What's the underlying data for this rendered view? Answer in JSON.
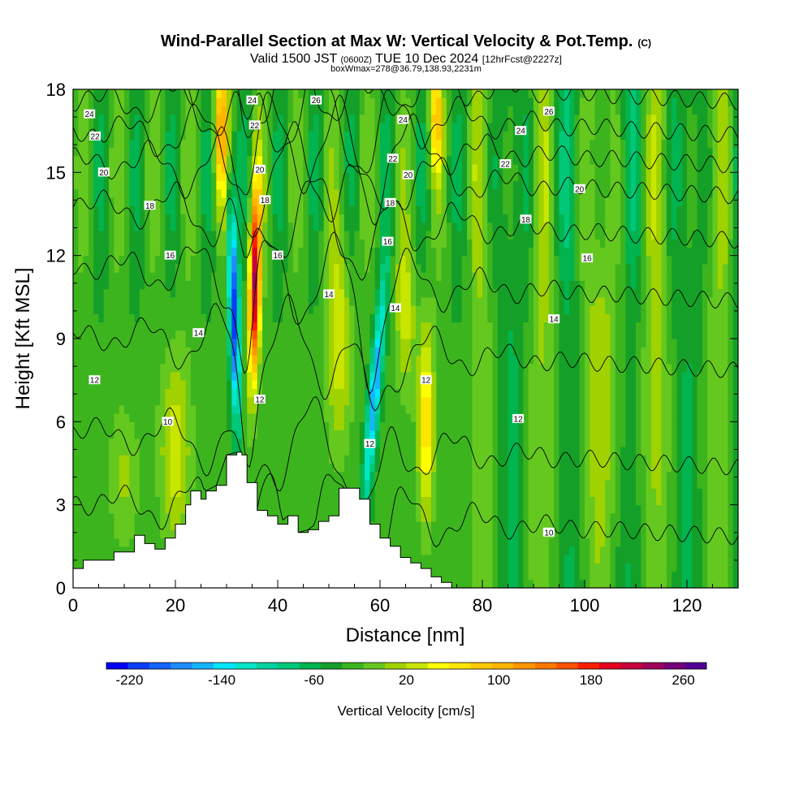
{
  "chart_data": {
    "type": "heatmap",
    "title": "Wind-Parallel Section at Max W: Vertical Velocity & Pot.Temp.",
    "title_mark": "(C)",
    "subtitle_parts": [
      "Valid 1500 JST",
      "(0600Z)",
      "TUE 10 Dec 2024",
      "[12hrFcst@2227z]"
    ],
    "subtitle2": "boxWmax=278@36.79,138.93,2231m",
    "xlabel": "Distance [nm]",
    "ylabel": "Height [Kft MSL]",
    "xlim": [
      0,
      130
    ],
    "ylim": [
      0,
      18
    ],
    "x_ticks": [
      "0",
      "20",
      "40",
      "60",
      "80",
      "100",
      "120"
    ],
    "y_ticks": [
      "0",
      "3",
      "6",
      "9",
      "12",
      "15",
      "18"
    ],
    "colorbar": {
      "label": "Vertical Velocity [cm/s]",
      "tick_labels": [
        "-220",
        "-140",
        "-60",
        "20",
        "100",
        "180",
        "260"
      ],
      "min": -240,
      "max": 280,
      "step": 20,
      "colors": [
        "#0000ff",
        "#0a3cff",
        "#1464ff",
        "#1e8cff",
        "#14b4ff",
        "#00e6ff",
        "#00e6c8",
        "#00d2a0",
        "#00c878",
        "#00b450",
        "#14a028",
        "#3cb41e",
        "#64c81e",
        "#a0d200",
        "#c8e600",
        "#ffff00",
        "#ffe600",
        "#ffc800",
        "#ffb400",
        "#ff9600",
        "#ff7800",
        "#ff5000",
        "#ff1e00",
        "#e6001e",
        "#c8003c",
        "#a0005a",
        "#780078",
        "#500096"
      ]
    },
    "theta_contours": [
      10,
      12,
      14,
      16,
      18,
      20,
      22,
      24,
      26
    ],
    "terrain_height_kft": [
      [
        0,
        0.7
      ],
      [
        2,
        1.0
      ],
      [
        8,
        1.3
      ],
      [
        12,
        1.9
      ],
      [
        14,
        1.6
      ],
      [
        16,
        1.4
      ],
      [
        18,
        1.8
      ],
      [
        20,
        2.3
      ],
      [
        22,
        3.0
      ],
      [
        23,
        3.5
      ],
      [
        25,
        3.2
      ],
      [
        26,
        3.5
      ],
      [
        28,
        3.7
      ],
      [
        30,
        4.8
      ],
      [
        32,
        4.9
      ],
      [
        33,
        4.8
      ],
      [
        34,
        3.8
      ],
      [
        36,
        2.8
      ],
      [
        38,
        2.6
      ],
      [
        40,
        2.3
      ],
      [
        42,
        2.6
      ],
      [
        44,
        2.0
      ],
      [
        46,
        2.1
      ],
      [
        48,
        2.4
      ],
      [
        50,
        2.6
      ],
      [
        52,
        3.6
      ],
      [
        54,
        3.6
      ],
      [
        56,
        3.2
      ],
      [
        58,
        2.3
      ],
      [
        60,
        1.8
      ],
      [
        62,
        1.5
      ],
      [
        64,
        1.1
      ],
      [
        66,
        0.9
      ],
      [
        68,
        0.7
      ],
      [
        70,
        0.4
      ],
      [
        72,
        0.2
      ],
      [
        74,
        0.0
      ],
      [
        130,
        0.0
      ]
    ],
    "contour_labels": [
      {
        "text": "24",
        "x": 3.2,
        "y": 17.1
      },
      {
        "text": "22",
        "x": 4.3,
        "y": 16.3
      },
      {
        "text": "20",
        "x": 6.0,
        "y": 15.0
      },
      {
        "text": "18",
        "x": 15.0,
        "y": 13.8
      },
      {
        "text": "16",
        "x": 19.0,
        "y": 12.0
      },
      {
        "text": "14",
        "x": 24.5,
        "y": 9.2
      },
      {
        "text": "12",
        "x": 4.2,
        "y": 7.5
      },
      {
        "text": "10",
        "x": 18.5,
        "y": 6.0
      },
      {
        "text": "24",
        "x": 35.0,
        "y": 17.6
      },
      {
        "text": "22",
        "x": 35.5,
        "y": 16.7
      },
      {
        "text": "20",
        "x": 36.5,
        "y": 15.1
      },
      {
        "text": "18",
        "x": 37.5,
        "y": 14.0
      },
      {
        "text": "16",
        "x": 40.0,
        "y": 12.0
      },
      {
        "text": "12",
        "x": 36.5,
        "y": 6.8
      },
      {
        "text": "26",
        "x": 47.5,
        "y": 17.6
      },
      {
        "text": "14",
        "x": 50.0,
        "y": 10.6
      },
      {
        "text": "24",
        "x": 64.5,
        "y": 16.9
      },
      {
        "text": "22",
        "x": 62.5,
        "y": 15.5
      },
      {
        "text": "20",
        "x": 65.5,
        "y": 14.9
      },
      {
        "text": "18",
        "x": 62.0,
        "y": 13.9
      },
      {
        "text": "16",
        "x": 61.5,
        "y": 12.5
      },
      {
        "text": "14",
        "x": 63.0,
        "y": 10.1
      },
      {
        "text": "12",
        "x": 58.0,
        "y": 5.2
      },
      {
        "text": "12",
        "x": 69.0,
        "y": 7.5
      },
      {
        "text": "26",
        "x": 93.0,
        "y": 17.2
      },
      {
        "text": "24",
        "x": 87.5,
        "y": 16.5
      },
      {
        "text": "22",
        "x": 84.5,
        "y": 15.3
      },
      {
        "text": "20",
        "x": 99.0,
        "y": 14.4
      },
      {
        "text": "18",
        "x": 88.5,
        "y": 13.3
      },
      {
        "text": "16",
        "x": 100.5,
        "y": 11.9
      },
      {
        "text": "14",
        "x": 94.0,
        "y": 9.7
      },
      {
        "text": "12",
        "x": 87.0,
        "y": 6.1
      },
      {
        "text": "10",
        "x": 93.0,
        "y": 2.0
      }
    ]
  }
}
